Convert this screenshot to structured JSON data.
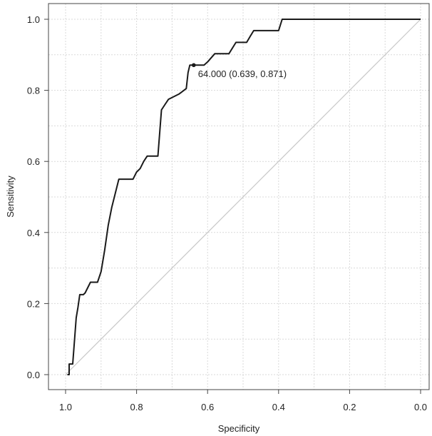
{
  "chart_data": {
    "type": "line",
    "xlabel": "Specificity",
    "ylabel": "Sensitivity",
    "xlim": [
      1.0,
      0.0
    ],
    "ylim": [
      0.0,
      1.0
    ],
    "x_ticks": [
      "1.0",
      "0.8",
      "0.6",
      "0.4",
      "0.2",
      "0.0"
    ],
    "y_ticks": [
      "0.0",
      "0.2",
      "0.4",
      "0.6",
      "0.8",
      "1.0"
    ],
    "grid": true,
    "reference_line": {
      "x": [
        1.0,
        0.0
      ],
      "y": [
        0.0,
        1.0
      ]
    },
    "series": [
      {
        "x": [
          0.995,
          0.99,
          0.99,
          0.98,
          0.97,
          0.965,
          0.96,
          0.95,
          0.945,
          0.94,
          0.93,
          0.925,
          0.91,
          0.9,
          0.89,
          0.88,
          0.87,
          0.86,
          0.85,
          0.84,
          0.835,
          0.81,
          0.8,
          0.79,
          0.78,
          0.77,
          0.76,
          0.74,
          0.73,
          0.72,
          0.71,
          0.7,
          0.68,
          0.66,
          0.655,
          0.65,
          0.639,
          0.61,
          0.6,
          0.58,
          0.56,
          0.54,
          0.52,
          0.5,
          0.49,
          0.48,
          0.47,
          0.46,
          0.4,
          0.39,
          0.38,
          0.0
        ],
        "y": [
          0.0,
          0.0,
          0.03,
          0.03,
          0.16,
          0.19,
          0.225,
          0.225,
          0.23,
          0.24,
          0.26,
          0.26,
          0.26,
          0.29,
          0.35,
          0.42,
          0.47,
          0.51,
          0.55,
          0.55,
          0.55,
          0.55,
          0.57,
          0.58,
          0.6,
          0.615,
          0.615,
          0.615,
          0.745,
          0.76,
          0.775,
          0.78,
          0.79,
          0.805,
          0.85,
          0.871,
          0.871,
          0.871,
          0.88,
          0.903,
          0.903,
          0.903,
          0.935,
          0.935,
          0.935,
          0.952,
          0.968,
          0.968,
          0.968,
          1.0,
          1.0,
          1.0
        ]
      }
    ],
    "annotation": {
      "label": "64.000 (0.639, 0.871)",
      "x": 0.639,
      "y": 0.871
    }
  }
}
